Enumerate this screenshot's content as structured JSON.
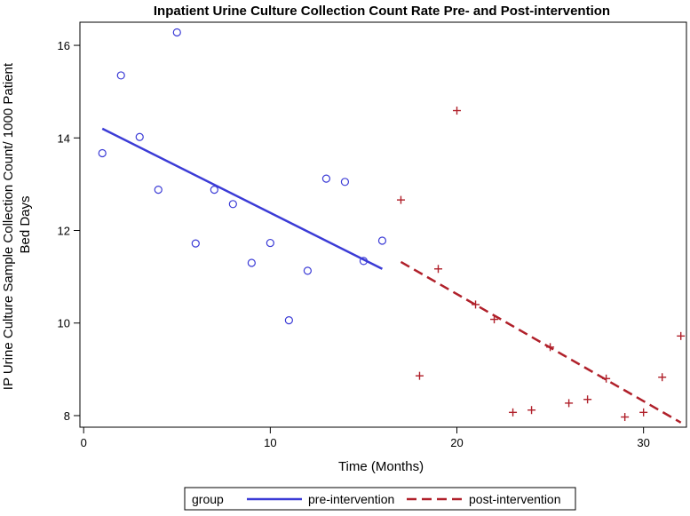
{
  "chart_data": {
    "type": "scatter",
    "title": "Inpatient Urine Culture Collection Count Rate Pre- and Post-intervention",
    "xlabel": "Time (Months)",
    "ylabel_lines": [
      "IP Urine Culture Sample Collection Count/ 1000 Patient",
      "Bed Days"
    ],
    "xlim": [
      -0.2,
      32.3
    ],
    "ylim": [
      7.75,
      16.5
    ],
    "x_ticks": [
      0,
      10,
      20,
      30
    ],
    "y_ticks": [
      8,
      10,
      12,
      14,
      16
    ],
    "legend_position": "bottom",
    "legend_title": "group",
    "series": [
      {
        "name": "pre-intervention",
        "marker": "circle",
        "color": "#3b3bd6",
        "points": [
          {
            "x": 1,
            "y": 13.67
          },
          {
            "x": 2,
            "y": 15.35
          },
          {
            "x": 3,
            "y": 14.02
          },
          {
            "x": 4,
            "y": 12.88
          },
          {
            "x": 5,
            "y": 16.28
          },
          {
            "x": 6,
            "y": 11.72
          },
          {
            "x": 7,
            "y": 12.88
          },
          {
            "x": 8,
            "y": 12.57
          },
          {
            "x": 9,
            "y": 11.3
          },
          {
            "x": 10,
            "y": 11.73
          },
          {
            "x": 11,
            "y": 10.06
          },
          {
            "x": 12,
            "y": 11.13
          },
          {
            "x": 13,
            "y": 13.12
          },
          {
            "x": 14,
            "y": 13.05
          },
          {
            "x": 15,
            "y": 11.34
          },
          {
            "x": 16,
            "y": 11.78
          }
        ],
        "trend": {
          "x": [
            1,
            16
          ],
          "y": [
            14.2,
            11.17
          ],
          "style": "solid"
        }
      },
      {
        "name": "post-intervention",
        "marker": "plus",
        "color": "#b0202a",
        "points": [
          {
            "x": 17,
            "y": 12.66
          },
          {
            "x": 18,
            "y": 8.86
          },
          {
            "x": 19,
            "y": 11.17
          },
          {
            "x": 20,
            "y": 14.59
          },
          {
            "x": 21,
            "y": 10.4
          },
          {
            "x": 22,
            "y": 10.08
          },
          {
            "x": 23,
            "y": 8.07
          },
          {
            "x": 24,
            "y": 8.12
          },
          {
            "x": 25,
            "y": 9.48
          },
          {
            "x": 26,
            "y": 8.27
          },
          {
            "x": 27,
            "y": 8.35
          },
          {
            "x": 28,
            "y": 8.8
          },
          {
            "x": 29,
            "y": 7.97
          },
          {
            "x": 30,
            "y": 8.07
          },
          {
            "x": 31,
            "y": 8.83
          },
          {
            "x": 32,
            "y": 9.72
          }
        ],
        "trend": {
          "x": [
            17,
            32
          ],
          "y": [
            11.32,
            7.85
          ],
          "style": "dashed"
        }
      }
    ]
  }
}
